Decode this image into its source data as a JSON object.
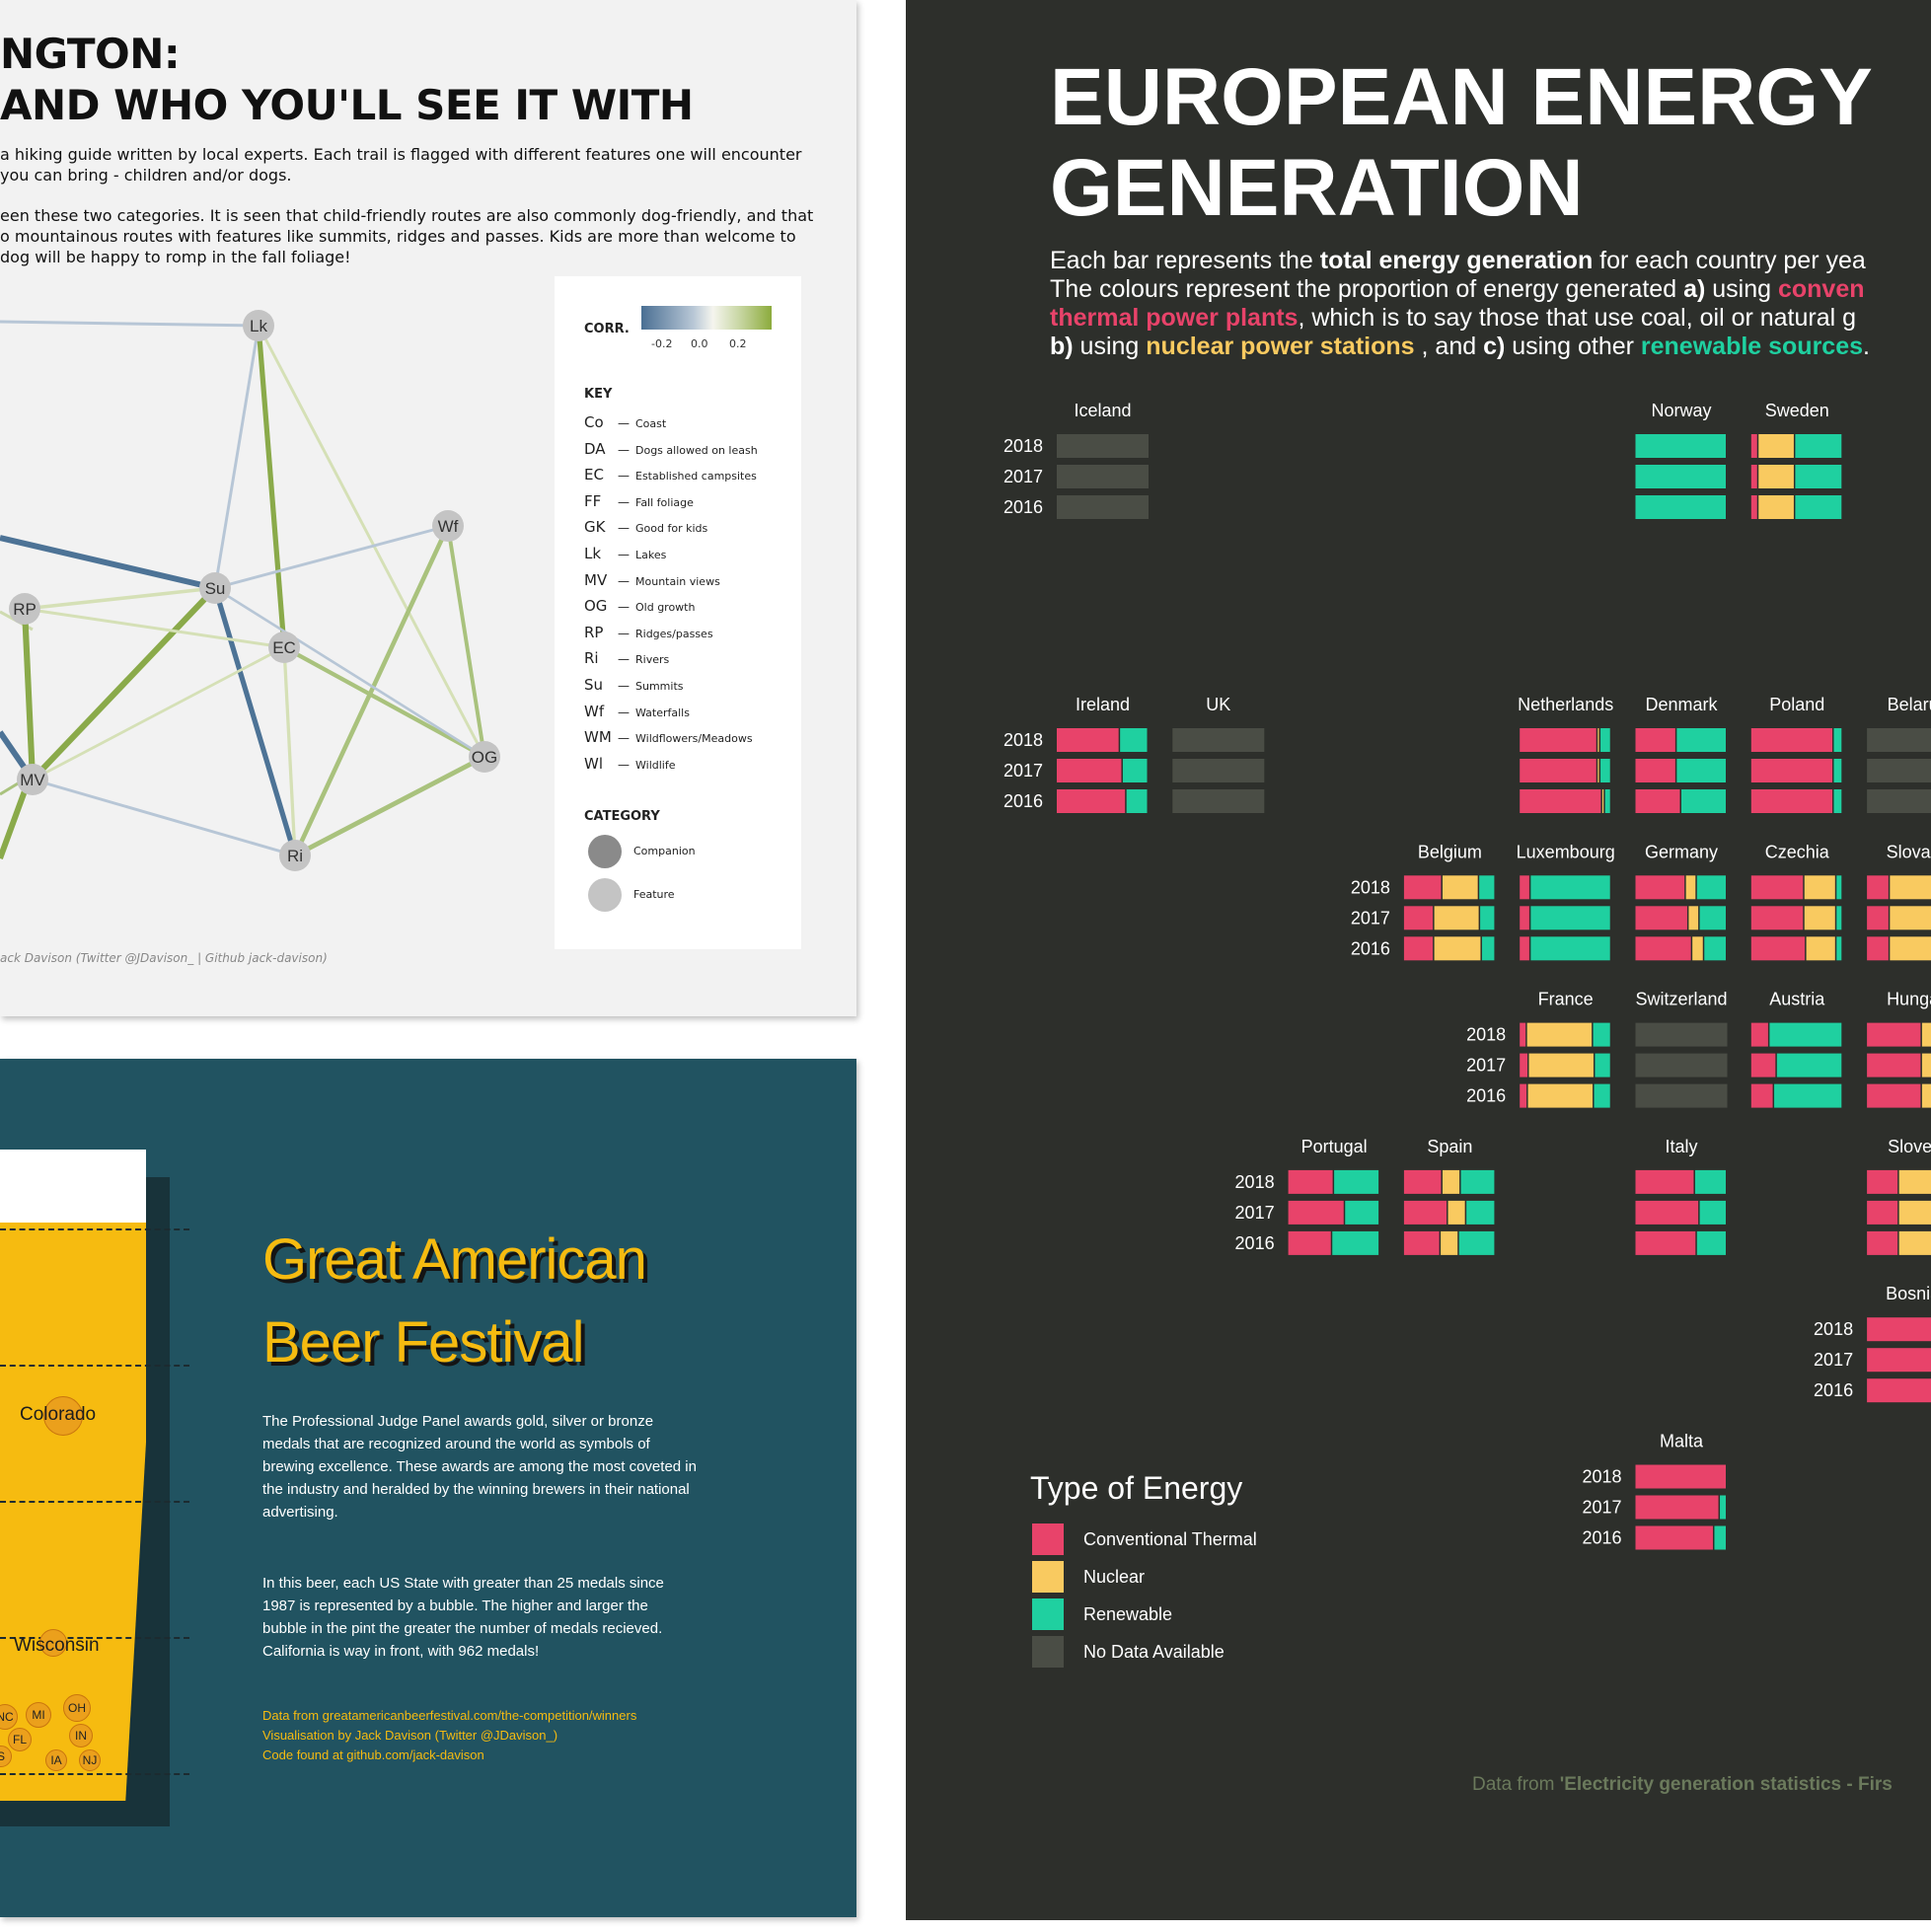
{
  "panel_a": {
    "title_line1": "NGTON:",
    "title_line2": "AND WHO YOU'LL SEE IT WITH",
    "para1": "a hiking guide written by local experts. Each trail is flagged with different features one will encounter you can bring - children and/or dogs.",
    "para2": "een these two categories. It is seen that child-friendly routes are also commonly dog-friendly, and that o mountainous routes with features like summits, ridges and passes. Kids are more than welcome to dog will be happy to romp in the fall foliage!",
    "credit": "ack Davison (Twitter @JDavison_ | Github jack-davison)",
    "legend": {
      "corr_title": "CORR.",
      "corr_ticks": [
        "-0.2",
        "0.0",
        "0.2"
      ],
      "key_title": "KEY",
      "key": [
        {
          "code": "Co",
          "label": "Coast"
        },
        {
          "code": "DA",
          "label": "Dogs allowed on leash"
        },
        {
          "code": "EC",
          "label": "Established campsites"
        },
        {
          "code": "FF",
          "label": "Fall foliage"
        },
        {
          "code": "GK",
          "label": "Good for kids"
        },
        {
          "code": "Lk",
          "label": "Lakes"
        },
        {
          "code": "MV",
          "label": "Mountain views"
        },
        {
          "code": "OG",
          "label": "Old growth"
        },
        {
          "code": "RP",
          "label": "Ridges/passes"
        },
        {
          "code": "Ri",
          "label": "Rivers"
        },
        {
          "code": "Su",
          "label": "Summits"
        },
        {
          "code": "Wf",
          "label": "Waterfalls"
        },
        {
          "code": "WM",
          "label": "Wildflowers/Meadows"
        },
        {
          "code": "Wl",
          "label": "Wildlife"
        }
      ],
      "category_title": "CATEGORY",
      "categories": [
        {
          "label": "Companion",
          "color": "#8a8a8a"
        },
        {
          "label": "Feature",
          "color": "#c4c4c4"
        }
      ]
    },
    "network": {
      "nodes": [
        "Lk",
        "Wf",
        "Su",
        "RP",
        "EC",
        "OG",
        "MV",
        "Ri"
      ],
      "edges": [
        {
          "a": "Lk",
          "b": "Su",
          "corr": -0.06
        },
        {
          "a": "Lk",
          "b": "EC",
          "corr": 0.2
        },
        {
          "a": "Lk",
          "b": "OG",
          "corr": 0.06
        },
        {
          "a": "Wf",
          "b": "Su",
          "corr": -0.06
        },
        {
          "a": "Wf",
          "b": "OG",
          "corr": 0.12
        },
        {
          "a": "Wf",
          "b": "Ri",
          "corr": 0.16
        },
        {
          "a": "Su",
          "b": "RP",
          "corr": 0.1
        },
        {
          "a": "Su",
          "b": "MV",
          "corr": 0.26
        },
        {
          "a": "Su",
          "b": "Ri",
          "corr": -0.2
        },
        {
          "a": "RP",
          "b": "EC",
          "corr": 0.06
        },
        {
          "a": "RP",
          "b": "MV",
          "corr": 0.26
        },
        {
          "a": "EC",
          "b": "OG",
          "corr": 0.14
        },
        {
          "a": "EC",
          "b": "Ri",
          "corr": 0.08
        },
        {
          "a": "EC",
          "b": "MV",
          "corr": 0.05
        },
        {
          "a": "OG",
          "b": "Ri",
          "corr": 0.18
        },
        {
          "a": "MV",
          "b": "Ri",
          "corr": -0.06
        },
        {
          "a": "Su",
          "b": "OG",
          "corr": -0.04
        }
      ]
    }
  },
  "panel_b": {
    "title_line1": "Great American",
    "title_line2": "Beer Festival",
    "para1": "The Professional Judge Panel awards gold, silver or bronze medals that are recognized around the world as symbols of brewing excellence. These awards are among the most coveted in the industry and heralded by the winning brewers in their national advertising.",
    "para2": "In this beer, each US State with greater than 25 medals since 1987 is represented by a bubble. The higher and larger the bubble in the pint the greater the number of medals recieved. California is way in front, with 962 medals!",
    "credit1": "Data from greatamericanbeerfestival.com/the-competition/winners",
    "credit2": "Visualisation by Jack Davison (Twitter @JDavison_)",
    "credit3": "Code found at github.com/jack-davison",
    "states_large": [
      "Colorado",
      "Wisconsin"
    ],
    "states_small": [
      "NC",
      "MI",
      "OH",
      "FL",
      "IN",
      "S",
      "IA",
      "NJ"
    ]
  },
  "panel_c": {
    "title_line1": "EUROPEAN ENERGY",
    "title_line2": "GENERATION",
    "sub1_a": "Each bar represents the ",
    "sub1_b": "total energy generation",
    "sub1_c": " for each country per yea",
    "sub2_a": "The colours represent the proportion of energy generated ",
    "sub2_b": "a)",
    "sub2_c": " using ",
    "sub2_d": "conven",
    "sub3_a": "thermal power plants",
    "sub3_b": ", which is to say those that use coal, oil or natural g",
    "sub4_a": "b)",
    "sub4_b": " using ",
    "sub4_c": "nuclear power stations",
    "sub4_d": " , and ",
    "sub4_e": "c)",
    "sub4_f": " using other ",
    "sub4_g": "renewable sources",
    "sub4_h": ".",
    "legend_title": "Type of Energy",
    "legend": [
      {
        "label": "Conventional Thermal",
        "color": "#e8436a"
      },
      {
        "label": "Nuclear",
        "color": "#f9ca60"
      },
      {
        "label": "Renewable",
        "color": "#1fd0a0"
      },
      {
        "label": "No Data Available",
        "color": "#4a4d45"
      }
    ],
    "source_a": "Data from ",
    "source_b": "'Electricity generation  statistics - Firs"
  },
  "chart_data": {
    "type": "bar",
    "title": "EUROPEAN ENERGY GENERATION",
    "years": [
      "2018",
      "2017",
      "2016"
    ],
    "series_order": [
      "Conventional Thermal",
      "Nuclear",
      "Renewable"
    ],
    "countries": [
      {
        "name": "Iceland",
        "show_years": true,
        "nodata": true
      },
      {
        "name": "Norway",
        "values": [
          [
            0,
            0,
            1
          ],
          [
            0,
            0,
            1
          ],
          [
            0,
            0,
            1
          ]
        ]
      },
      {
        "name": "Sweden",
        "values": [
          [
            0.08,
            0.4,
            0.52
          ],
          [
            0.08,
            0.4,
            0.52
          ],
          [
            0.08,
            0.4,
            0.52
          ]
        ]
      },
      {
        "name": "Ireland",
        "show_years": true,
        "values": [
          [
            0.69,
            0,
            0.31
          ],
          [
            0.72,
            0,
            0.28
          ],
          [
            0.76,
            0,
            0.24
          ]
        ]
      },
      {
        "name": "UK",
        "nodata": true
      },
      {
        "name": "Netherlands",
        "values": [
          [
            0.85,
            0.03,
            0.12
          ],
          [
            0.85,
            0.03,
            0.12
          ],
          [
            0.9,
            0.03,
            0.07
          ]
        ]
      },
      {
        "name": "Denmark",
        "values": [
          [
            0.45,
            0,
            0.55
          ],
          [
            0.45,
            0,
            0.55
          ],
          [
            0.5,
            0,
            0.5
          ]
        ]
      },
      {
        "name": "Poland",
        "values": [
          [
            0.9,
            0,
            0.1
          ],
          [
            0.9,
            0,
            0.1
          ],
          [
            0.9,
            0,
            0.1
          ]
        ]
      },
      {
        "name": "Belaru",
        "nodata": true
      },
      {
        "name": "Belgium",
        "show_years": true,
        "values": [
          [
            0.42,
            0.4,
            0.18
          ],
          [
            0.33,
            0.5,
            0.17
          ],
          [
            0.33,
            0.52,
            0.15
          ]
        ]
      },
      {
        "name": "Luxembourg",
        "values": [
          [
            0.12,
            0,
            0.88
          ],
          [
            0.12,
            0,
            0.88
          ],
          [
            0.12,
            0,
            0.88
          ]
        ]
      },
      {
        "name": "Germany",
        "values": [
          [
            0.55,
            0.12,
            0.33
          ],
          [
            0.58,
            0.12,
            0.3
          ],
          [
            0.62,
            0.13,
            0.25
          ]
        ]
      },
      {
        "name": "Czechia",
        "values": [
          [
            0.58,
            0.35,
            0.07
          ],
          [
            0.58,
            0.35,
            0.07
          ],
          [
            0.6,
            0.33,
            0.07
          ]
        ]
      },
      {
        "name": "Slovak",
        "values": [
          [
            0.25,
            0.75,
            0
          ],
          [
            0.25,
            0.75,
            0
          ],
          [
            0.25,
            0.75,
            0
          ]
        ]
      },
      {
        "name": "France",
        "show_years": true,
        "values": [
          [
            0.08,
            0.72,
            0.2
          ],
          [
            0.1,
            0.72,
            0.18
          ],
          [
            0.09,
            0.72,
            0.19
          ]
        ]
      },
      {
        "name": "Switzerland",
        "nodata": true
      },
      {
        "name": "Austria",
        "values": [
          [
            0.2,
            0,
            0.8
          ],
          [
            0.28,
            0,
            0.72
          ],
          [
            0.25,
            0,
            0.75
          ]
        ]
      },
      {
        "name": "Hunga",
        "values": [
          [
            0.6,
            0.4,
            0
          ],
          [
            0.6,
            0.4,
            0
          ],
          [
            0.6,
            0.4,
            0
          ]
        ]
      },
      {
        "name": "Portugal",
        "show_years": true,
        "values": [
          [
            0.5,
            0,
            0.5
          ],
          [
            0.62,
            0,
            0.38
          ],
          [
            0.48,
            0,
            0.52
          ]
        ]
      },
      {
        "name": "Spain",
        "values": [
          [
            0.42,
            0.2,
            0.38
          ],
          [
            0.48,
            0.2,
            0.32
          ],
          [
            0.4,
            0.2,
            0.4
          ]
        ]
      },
      {
        "name": "Italy",
        "values": [
          [
            0.65,
            0,
            0.35
          ],
          [
            0.7,
            0,
            0.3
          ],
          [
            0.67,
            0,
            0.33
          ]
        ]
      },
      {
        "name": "Slover",
        "values": [
          [
            0.35,
            0.65,
            0
          ],
          [
            0.35,
            0.65,
            0
          ],
          [
            0.35,
            0.65,
            0
          ]
        ]
      },
      {
        "name": "Bosnia",
        "show_years": true,
        "values": [
          [
            0.8,
            0,
            0.2
          ],
          [
            1,
            0,
            0
          ],
          [
            1,
            0,
            0
          ]
        ]
      },
      {
        "name": "Malta",
        "show_years": true,
        "values": [
          [
            1,
            0,
            0
          ],
          [
            0.92,
            0,
            0.08
          ],
          [
            0.86,
            0,
            0.14
          ]
        ]
      }
    ]
  }
}
